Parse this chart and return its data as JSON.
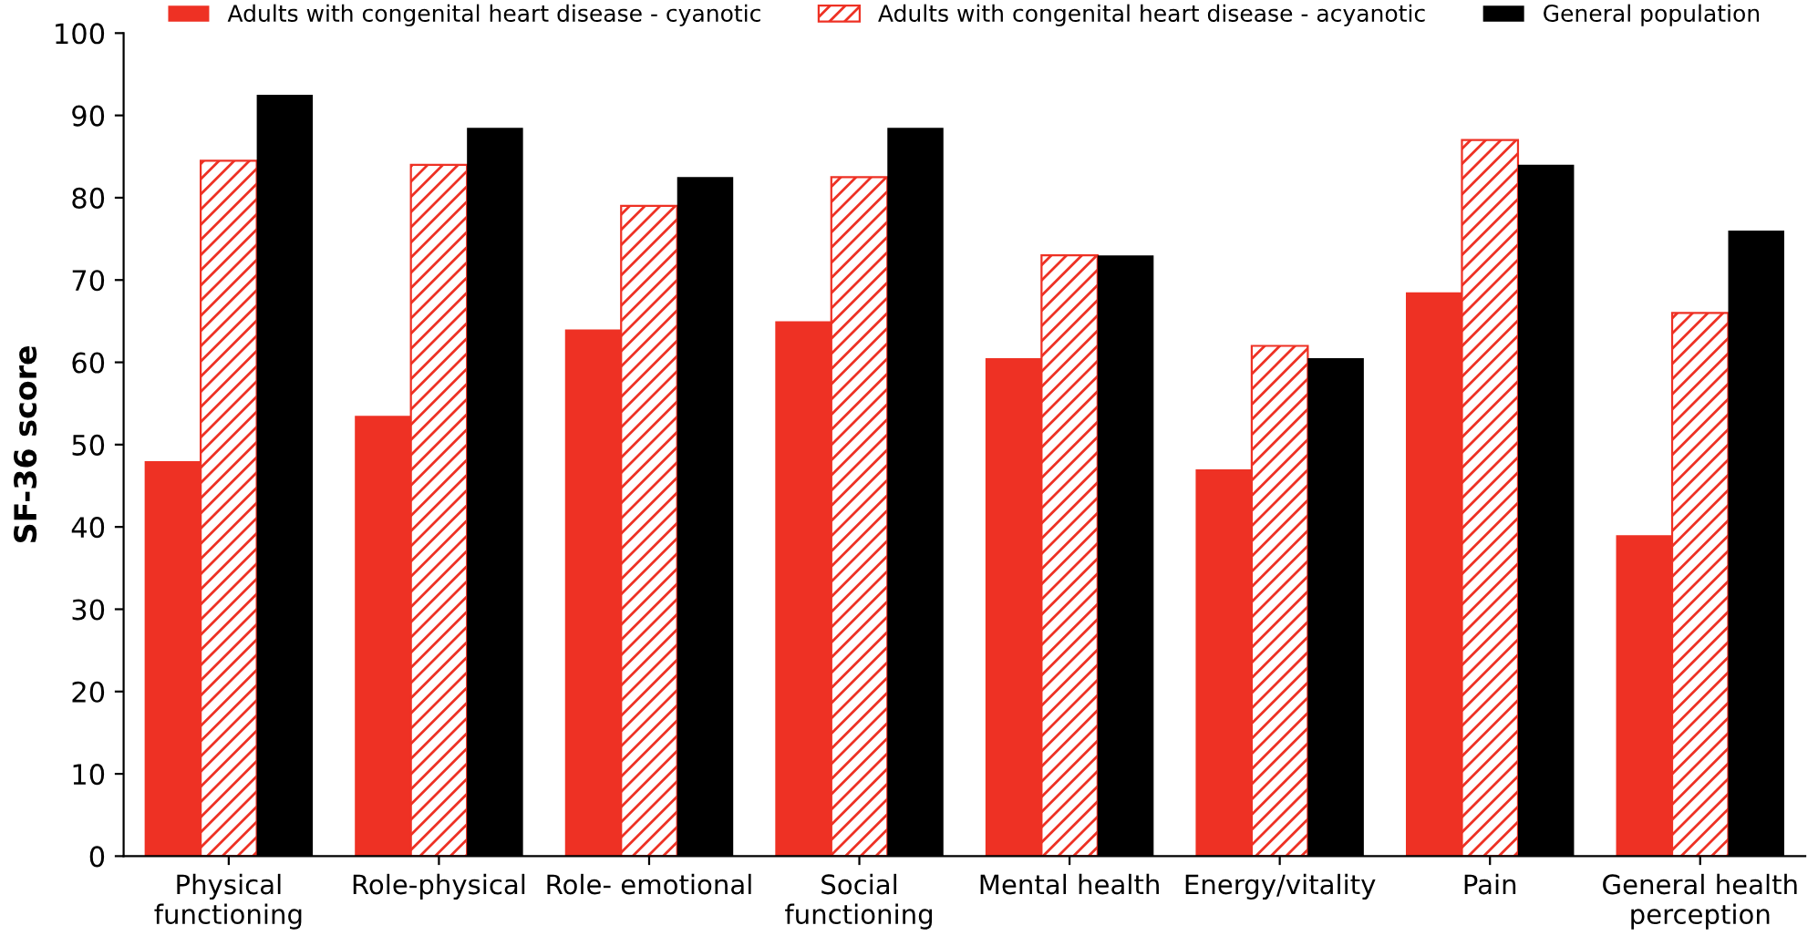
{
  "chart_data": {
    "type": "bar",
    "ylabel": "SF-36 score",
    "categories": [
      "Physical\nfunctioning",
      "Role-physical",
      "Role- emotional",
      "Social\nfunctioning",
      "Mental health",
      "Energy/vitality",
      "Pain",
      "General health\nperception"
    ],
    "series": [
      {
        "name": "Adults with congenital heart disease - cyanotic",
        "color": "#ee3124",
        "values": [
          48,
          53.5,
          64,
          65,
          60.5,
          47,
          68.5,
          39
        ]
      },
      {
        "name": "Adults with congenital heart disease - acyanotic",
        "color": "#ee3124",
        "values": [
          84.5,
          84,
          79,
          82.5,
          73,
          62,
          87,
          66
        ]
      },
      {
        "name": "General population",
        "color": "#000000",
        "values": [
          92.5,
          88.5,
          82.5,
          88.5,
          73,
          60.5,
          84,
          76
        ]
      }
    ],
    "ylim": [
      0,
      100
    ],
    "yticks": [
      0,
      10,
      20,
      30,
      40,
      50,
      60,
      70,
      80,
      90,
      100
    ],
    "grid": false,
    "legend": "top"
  }
}
